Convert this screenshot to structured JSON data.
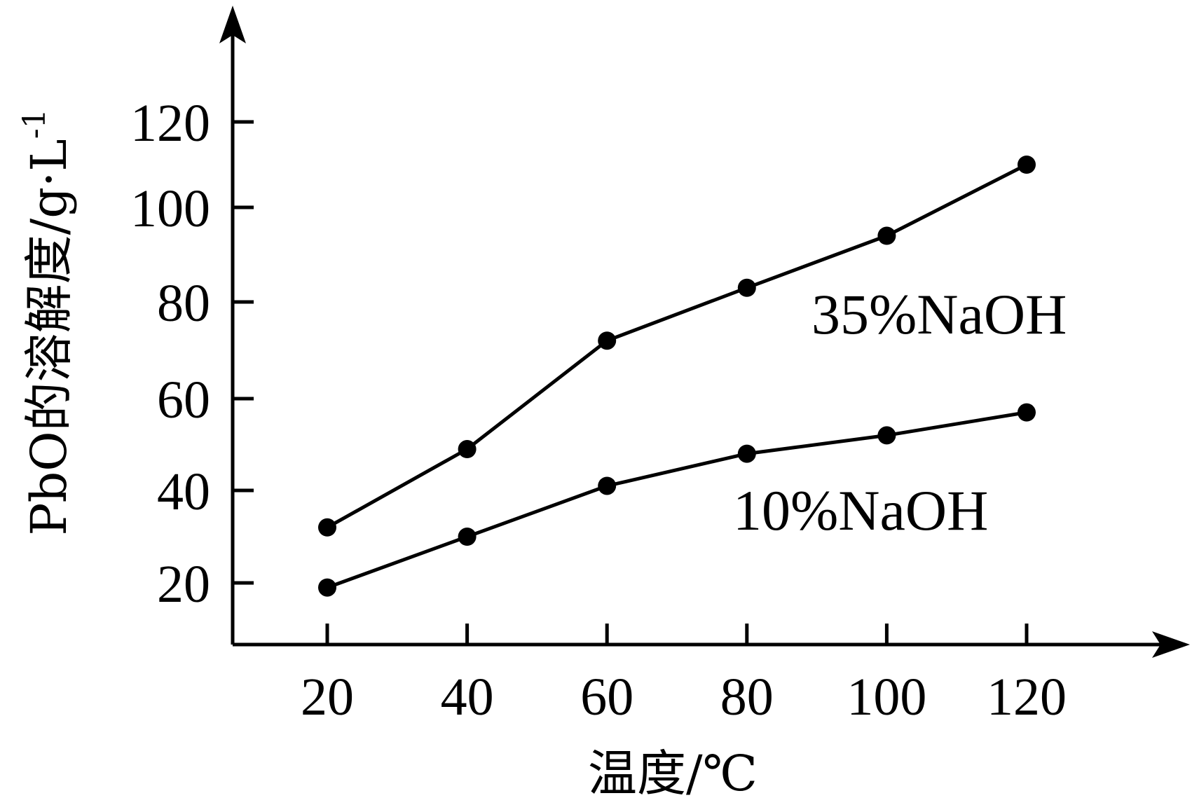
{
  "chart_data": {
    "type": "line",
    "xlabel": "温度/℃",
    "ylabel": "PbO的溶解度/g·L",
    "ylabel_sup": "-1",
    "x": [
      20,
      40,
      60,
      80,
      100,
      120
    ],
    "x_ticks": [
      "20",
      "40",
      "60",
      "80",
      "100",
      "120"
    ],
    "y_ticks": [
      "20",
      "40",
      "60",
      "80",
      "100",
      "120"
    ],
    "series": [
      {
        "name": "35%NaOH",
        "values": [
          32,
          49,
          72,
          83,
          94,
          110
        ]
      },
      {
        "name": "10%NaOH",
        "values": [
          19,
          30,
          41,
          48,
          52,
          57
        ]
      }
    ],
    "grid": false,
    "legend": "none"
  }
}
